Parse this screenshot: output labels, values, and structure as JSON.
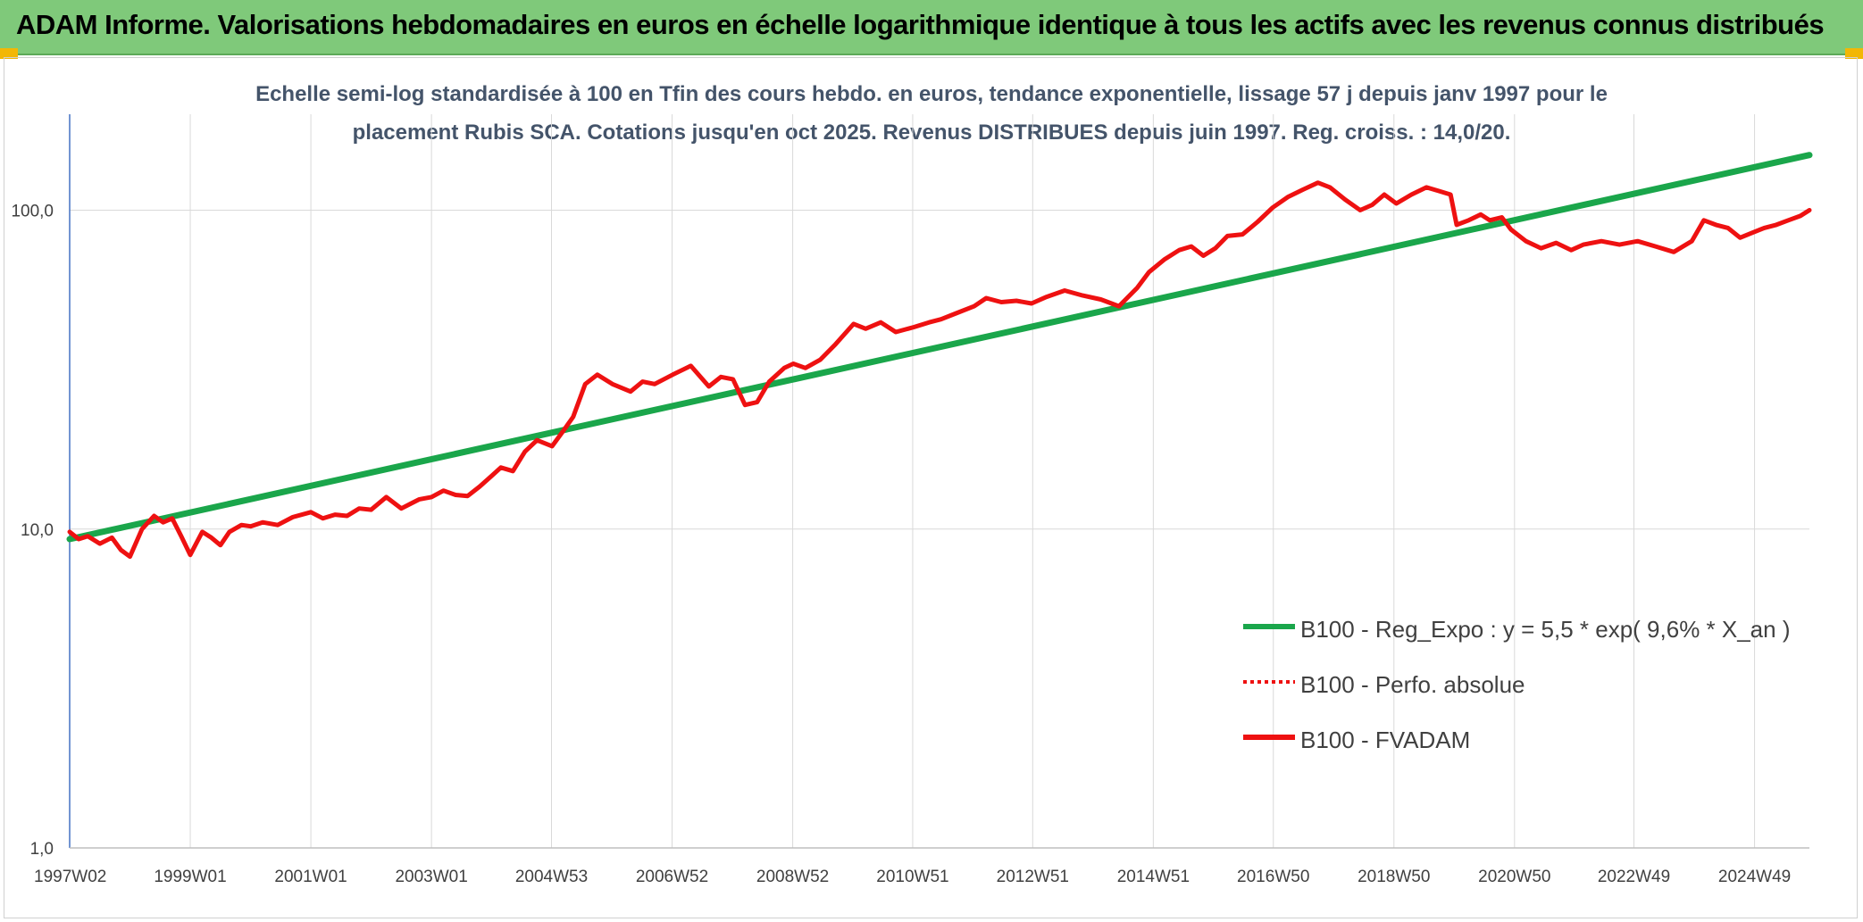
{
  "banner": {
    "title": "ADAM Informe. Valorisations hebdomadaires en euros en échelle logarithmique identique à tous les actifs avec les revenus connus distribués"
  },
  "colors": {
    "banner_bg": "#7fc97a",
    "corner_accent": "#f2b705",
    "regression": "#1aa64b",
    "fvadam": "#ee1111",
    "perfo": "#ee1111",
    "grid": "#d9d9d9",
    "axis": "#4472c4"
  },
  "chart_data": {
    "type": "line",
    "title_lines": [
      "Echelle semi-log standardisée à 100 en Tfin des cours hebdo. en euros, tendance exponentielle, lissage 57 j depuis janv 1997 pour le",
      "placement Rubis SCA. Cotations jusqu'en oct 2025. Revenus DISTRIBUES depuis juin 1997. Reg. croiss. : 14,0/20."
    ],
    "y_scale": "log",
    "ylim": [
      1,
      200
    ],
    "y_ticks": [
      1,
      10,
      100
    ],
    "y_tick_labels": [
      "1,0",
      "10,0",
      "100,0"
    ],
    "xlim": [
      1997.0,
      2025.85
    ],
    "x_ticks": [
      1997.0,
      1999.0,
      2001.0,
      2003.0,
      2004.99,
      2006.99,
      2008.99,
      2010.98,
      2012.97,
      2014.97,
      2016.96,
      2018.96,
      2020.96,
      2022.94,
      2024.94
    ],
    "x_tick_labels": [
      "1997W02",
      "1999W01",
      "2001W01",
      "2003W01",
      "2004W53",
      "2006W52",
      "2008W52",
      "2010W51",
      "2012W51",
      "2014W51",
      "2016W50",
      "2018W50",
      "2020W50",
      "2022W49",
      "2024W49"
    ],
    "grid": "vertical and horizontal",
    "legend_position": "bottom-right",
    "series": [
      {
        "name": "B100 - Reg_Expo : y = 5,5 * exp( 9,6% *  X_an )",
        "style": "solid-thick",
        "x": [
          1997.0,
          2025.85
        ],
        "values": [
          9.3,
          149
        ]
      },
      {
        "name": "B100 - Perfo. absolue",
        "style": "dotted",
        "x": [],
        "values": []
      },
      {
        "name": "B100 - FVADAM",
        "style": "solid-thick",
        "x": [
          1997.0,
          1997.15,
          1997.3,
          1997.5,
          1997.7,
          1997.85,
          1998.0,
          1998.2,
          1998.4,
          1998.55,
          1998.7,
          1998.85,
          1999.0,
          1999.2,
          1999.35,
          1999.5,
          1999.65,
          1999.85,
          2000.0,
          2000.2,
          2000.45,
          2000.7,
          2001.0,
          2001.2,
          2001.4,
          2001.6,
          2001.8,
          2002.0,
          2002.25,
          2002.5,
          2002.65,
          2002.8,
          2003.0,
          2003.2,
          2003.4,
          2003.6,
          2003.8,
          2004.0,
          2004.15,
          2004.35,
          2004.55,
          2004.75,
          2005.0,
          2005.2,
          2005.35,
          2005.55,
          2005.75,
          2006.0,
          2006.3,
          2006.5,
          2006.7,
          2007.0,
          2007.3,
          2007.6,
          2007.8,
          2008.0,
          2008.2,
          2008.4,
          2008.6,
          2008.85,
          2009.0,
          2009.2,
          2009.45,
          2009.7,
          2010.0,
          2010.2,
          2010.45,
          2010.7,
          2011.0,
          2011.25,
          2011.45,
          2011.7,
          2012.0,
          2012.2,
          2012.45,
          2012.7,
          2012.95,
          2013.2,
          2013.5,
          2013.8,
          2014.1,
          2014.4,
          2014.7,
          2014.9,
          2015.15,
          2015.4,
          2015.6,
          2015.8,
          2016.0,
          2016.2,
          2016.45,
          2016.7,
          2016.95,
          2017.2,
          2017.45,
          2017.7,
          2017.9,
          2018.15,
          2018.4,
          2018.6,
          2018.8,
          2019.0,
          2019.25,
          2019.5,
          2019.7,
          2019.9,
          2020.0,
          2020.2,
          2020.4,
          2020.55,
          2020.75,
          2020.9,
          2021.15,
          2021.4,
          2021.65,
          2021.9,
          2022.1,
          2022.4,
          2022.7,
          2023.0,
          2023.3,
          2023.6,
          2023.9,
          2024.1,
          2024.3,
          2024.5,
          2024.7,
          2024.9,
          2025.1,
          2025.3,
          2025.5,
          2025.7,
          2025.85
        ],
        "values": [
          9.8,
          9.3,
          9.5,
          9.0,
          9.4,
          8.6,
          8.2,
          10.0,
          11.0,
          10.5,
          10.8,
          9.5,
          8.3,
          9.8,
          9.4,
          8.9,
          9.8,
          10.3,
          10.2,
          10.5,
          10.3,
          10.9,
          11.3,
          10.8,
          11.1,
          11.0,
          11.6,
          11.5,
          12.6,
          11.6,
          12.0,
          12.4,
          12.6,
          13.2,
          12.8,
          12.7,
          13.6,
          14.7,
          15.6,
          15.2,
          17.5,
          19.0,
          18.2,
          20.5,
          22.5,
          28.5,
          30.5,
          28.5,
          27.0,
          29.0,
          28.5,
          30.5,
          32.5,
          28.0,
          30.0,
          29.5,
          24.5,
          25.0,
          29.0,
          32.0,
          33.0,
          32.0,
          34.0,
          38.0,
          44.0,
          42.5,
          44.5,
          41.5,
          43.0,
          44.5,
          45.5,
          47.5,
          50.0,
          53.0,
          51.5,
          52.0,
          51.0,
          53.5,
          56.0,
          54.0,
          52.5,
          50.0,
          57.0,
          64.0,
          70.0,
          75.0,
          77.0,
          72.0,
          76.0,
          83.0,
          84.0,
          92.0,
          102.0,
          110.0,
          116.0,
          122.0,
          118.0,
          108.0,
          100.0,
          104.0,
          112.0,
          105.0,
          112.0,
          118.0,
          115.0,
          112.0,
          90.0,
          93.0,
          97.0,
          93.0,
          95.0,
          87.0,
          80.0,
          76.0,
          79.0,
          75.0,
          78.0,
          80.0,
          78.0,
          80.0,
          77.0,
          74.0,
          80.0,
          93.0,
          90.0,
          88.0,
          82.0,
          85.0,
          88.0,
          90.0,
          93.0,
          96.0,
          100.0
        ]
      }
    ]
  }
}
